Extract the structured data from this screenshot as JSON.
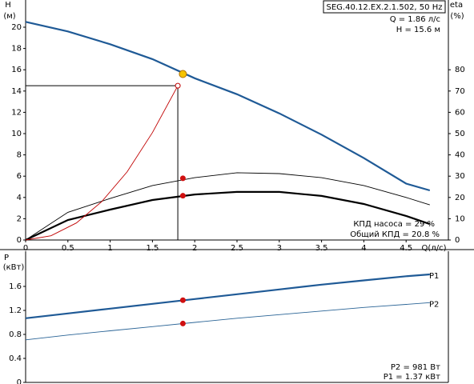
{
  "chart_data": [
    {
      "type": "line",
      "title": "SEG.40.12.EX.2.1.502, 50 Hz",
      "y_label": "H",
      "y_unit": "(м)",
      "y2_label": "eta",
      "y2_unit": "(%)",
      "x_label": "Q(л/с)",
      "xlim": [
        0,
        5
      ],
      "xticks": [
        0,
        0.5,
        1,
        1.5,
        2,
        2.5,
        3,
        3.5,
        4,
        4.5
      ],
      "ylim": [
        0,
        22
      ],
      "yticks": [
        0,
        2,
        4,
        6,
        8,
        10,
        12,
        14,
        16,
        18,
        20
      ],
      "y2lim": [
        0,
        110
      ],
      "y2ticks": [
        0,
        10,
        20,
        30,
        40,
        50,
        60,
        70,
        80
      ],
      "x": [
        0,
        0.5,
        1,
        1.5,
        2,
        2.5,
        3,
        3.5,
        4,
        4.5,
        4.78
      ],
      "series": [
        {
          "color": "#1f5a96",
          "width": 2.2,
          "values": [
            20.5,
            19.6,
            18.4,
            17.0,
            15.2,
            13.7,
            11.9,
            9.9,
            7.7,
            5.3,
            4.66
          ]
        },
        {
          "color": "#000000",
          "width": 0.9,
          "axis": "y2",
          "values": [
            0,
            13,
            19.5,
            25.6,
            29.3,
            31.6,
            31.2,
            29.3,
            25.6,
            20,
            16.5
          ]
        },
        {
          "color": "#000000",
          "width": 2.2,
          "axis": "y2",
          "values": [
            0,
            9.4,
            14.3,
            18.8,
            21.4,
            22.6,
            22.6,
            20.7,
            16.9,
            11.3,
            7.5
          ]
        },
        {
          "color": "#c00000",
          "width": 0.9,
          "x": [
            0,
            0.3,
            0.6,
            0.9,
            1.2,
            1.5,
            1.8
          ],
          "values": [
            0,
            0.4,
            1.6,
            3.6,
            6.4,
            10.1,
            14.5
          ]
        }
      ],
      "duty_point": {
        "x": 1.8,
        "y": 14.5
      },
      "points": [
        {
          "x": 1.86,
          "y": 15.6,
          "color": "#f5c400"
        },
        {
          "x": 1.86,
          "y": 29,
          "axis": "y2",
          "color": "#d01010"
        },
        {
          "x": 1.86,
          "y": 20.8,
          "axis": "y2",
          "color": "#d01010"
        }
      ],
      "annotations": [
        "Q = 1.86 л/с",
        "H = 15.6 м",
        "КПД насоса = 29 %",
        "Общий КПД = 20.8 %"
      ]
    },
    {
      "type": "line",
      "y_label": "P",
      "y_unit": "(кВт)",
      "xlim": [
        0,
        5
      ],
      "ylim": [
        0,
        2.1
      ],
      "yticks": [
        0,
        0.4,
        0.8,
        1.2,
        1.6
      ],
      "x": [
        0,
        0.5,
        1,
        1.5,
        2,
        2.5,
        3,
        3.5,
        4,
        4.5,
        4.78
      ],
      "series": [
        {
          "name": "P1",
          "color": "#1f5a96",
          "width": 2.2,
          "values": [
            1.07,
            1.15,
            1.23,
            1.31,
            1.39,
            1.47,
            1.55,
            1.63,
            1.7,
            1.77,
            1.8
          ]
        },
        {
          "name": "P2",
          "color": "#2a6496",
          "width": 0.9,
          "values": [
            0.71,
            0.79,
            0.86,
            0.93,
            1.0,
            1.07,
            1.13,
            1.19,
            1.25,
            1.3,
            1.33
          ]
        }
      ],
      "points": [
        {
          "x": 1.86,
          "y": 1.37,
          "color": "#d01010"
        },
        {
          "x": 1.86,
          "y": 0.981,
          "color": "#d01010"
        }
      ],
      "annotations": [
        "P2 = 981 Вт",
        "P1 = 1.37 кВт"
      ]
    }
  ]
}
